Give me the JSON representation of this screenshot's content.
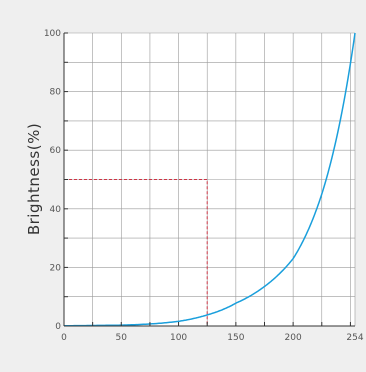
{
  "chart_data": {
    "type": "line",
    "title": "",
    "xlabel": "",
    "ylabel": "Brightness(%)",
    "xlim": [
      0,
      254
    ],
    "ylim": [
      0,
      100
    ],
    "x_ticks": [
      0,
      50,
      100,
      150,
      200,
      254
    ],
    "y_ticks": [
      0,
      20,
      40,
      60,
      80,
      100
    ],
    "x_minor_step": 25,
    "y_minor_step": 10,
    "grid": true,
    "series": [
      {
        "color": "#1a9fdc",
        "curve": "exponential",
        "x": [
          0,
          50,
          75,
          100,
          110,
          125,
          150,
          175,
          200,
          225,
          254
        ],
        "y": [
          0.1,
          0.3,
          0.7,
          1.6,
          2.3,
          3.8,
          7.8,
          13.5,
          23,
          45,
          100
        ]
      }
    ],
    "reference_lines": [
      {
        "color": "#cc3344",
        "style": "dashed",
        "points": [
          [
            0,
            50
          ],
          [
            125,
            50
          ],
          [
            125,
            0
          ]
        ]
      }
    ]
  }
}
